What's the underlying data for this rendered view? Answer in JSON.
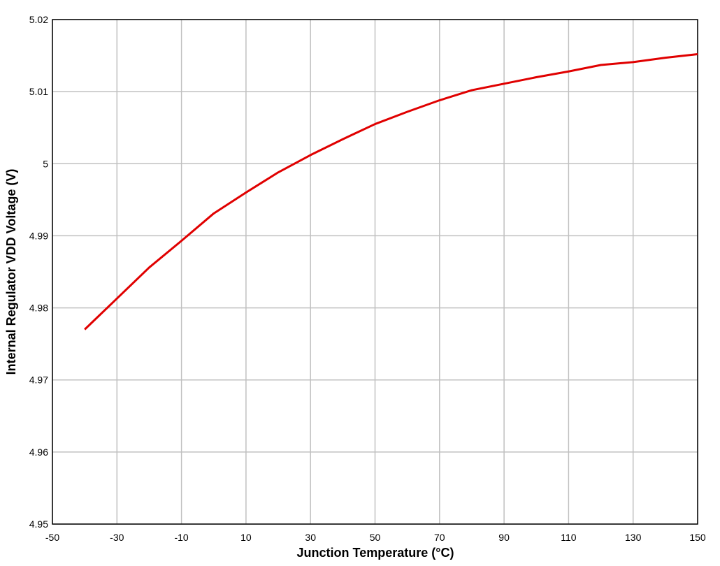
{
  "chart_data": {
    "type": "line",
    "x_label": "Junction Temperature (°C)",
    "y_label": "Internal Regulator VDD Voltage (V)",
    "x": [
      -40,
      -30,
      -20,
      -10,
      0,
      10,
      20,
      30,
      40,
      50,
      60,
      70,
      80,
      90,
      100,
      110,
      120,
      130,
      140,
      150
    ],
    "series": [
      {
        "name": "VDD",
        "color": "#e00000",
        "values": [
          4.977,
          4.9813,
          4.9856,
          4.9893,
          4.9931,
          4.996,
          4.9988,
          5.0012,
          5.0034,
          5.0055,
          5.0072,
          5.0088,
          5.0102,
          5.0111,
          5.012,
          5.0128,
          5.0137,
          5.0141,
          5.0147,
          5.0152
        ]
      }
    ],
    "xlim": [
      -50,
      150
    ],
    "xticks": [
      -50,
      -30,
      -10,
      10,
      30,
      50,
      70,
      90,
      110,
      130,
      150
    ],
    "ylim": [
      4.95,
      5.02
    ],
    "yticks": [
      4.95,
      4.96,
      4.97,
      4.98,
      4.99,
      5,
      5.01,
      5.02
    ],
    "grid": true
  }
}
